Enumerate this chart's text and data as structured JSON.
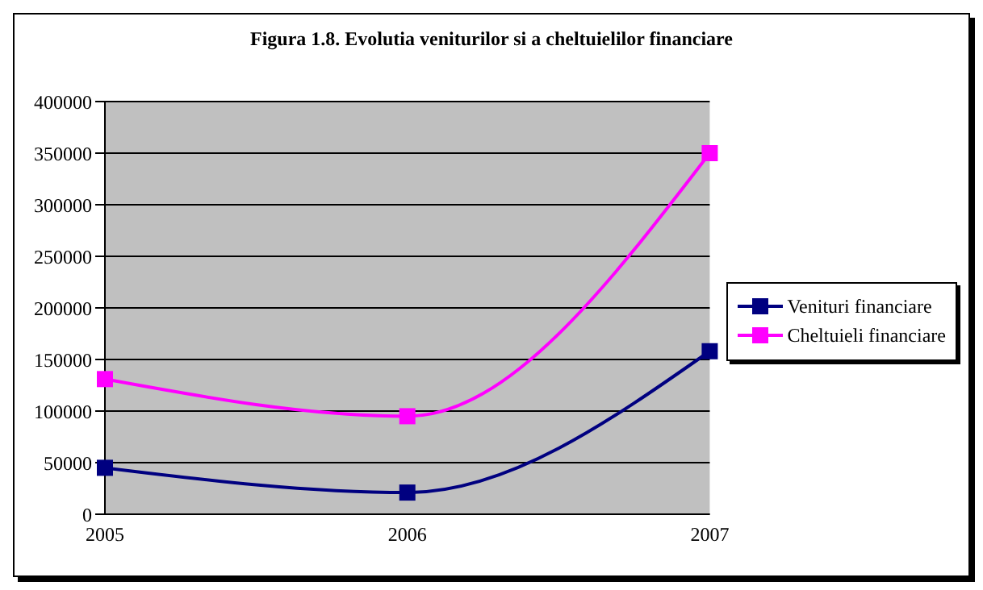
{
  "chart_data": {
    "type": "line",
    "title": "Figura 1.8. Evolutia veniturilor si a cheltuielilor financiare",
    "categories": [
      "2005",
      "2006",
      "2007"
    ],
    "series": [
      {
        "name": "Venituri financiare",
        "color": "#000080",
        "values": [
          45000,
          21000,
          158000
        ]
      },
      {
        "name": "Cheltuieli financiare",
        "color": "#ff00ff",
        "values": [
          131000,
          95000,
          350000
        ]
      }
    ],
    "ylim": [
      0,
      400000
    ],
    "yticks": [
      0,
      50000,
      100000,
      150000,
      200000,
      250000,
      300000,
      350000,
      400000
    ],
    "grid": "y",
    "legend": "right",
    "marker": "square",
    "line_style": "solid"
  }
}
